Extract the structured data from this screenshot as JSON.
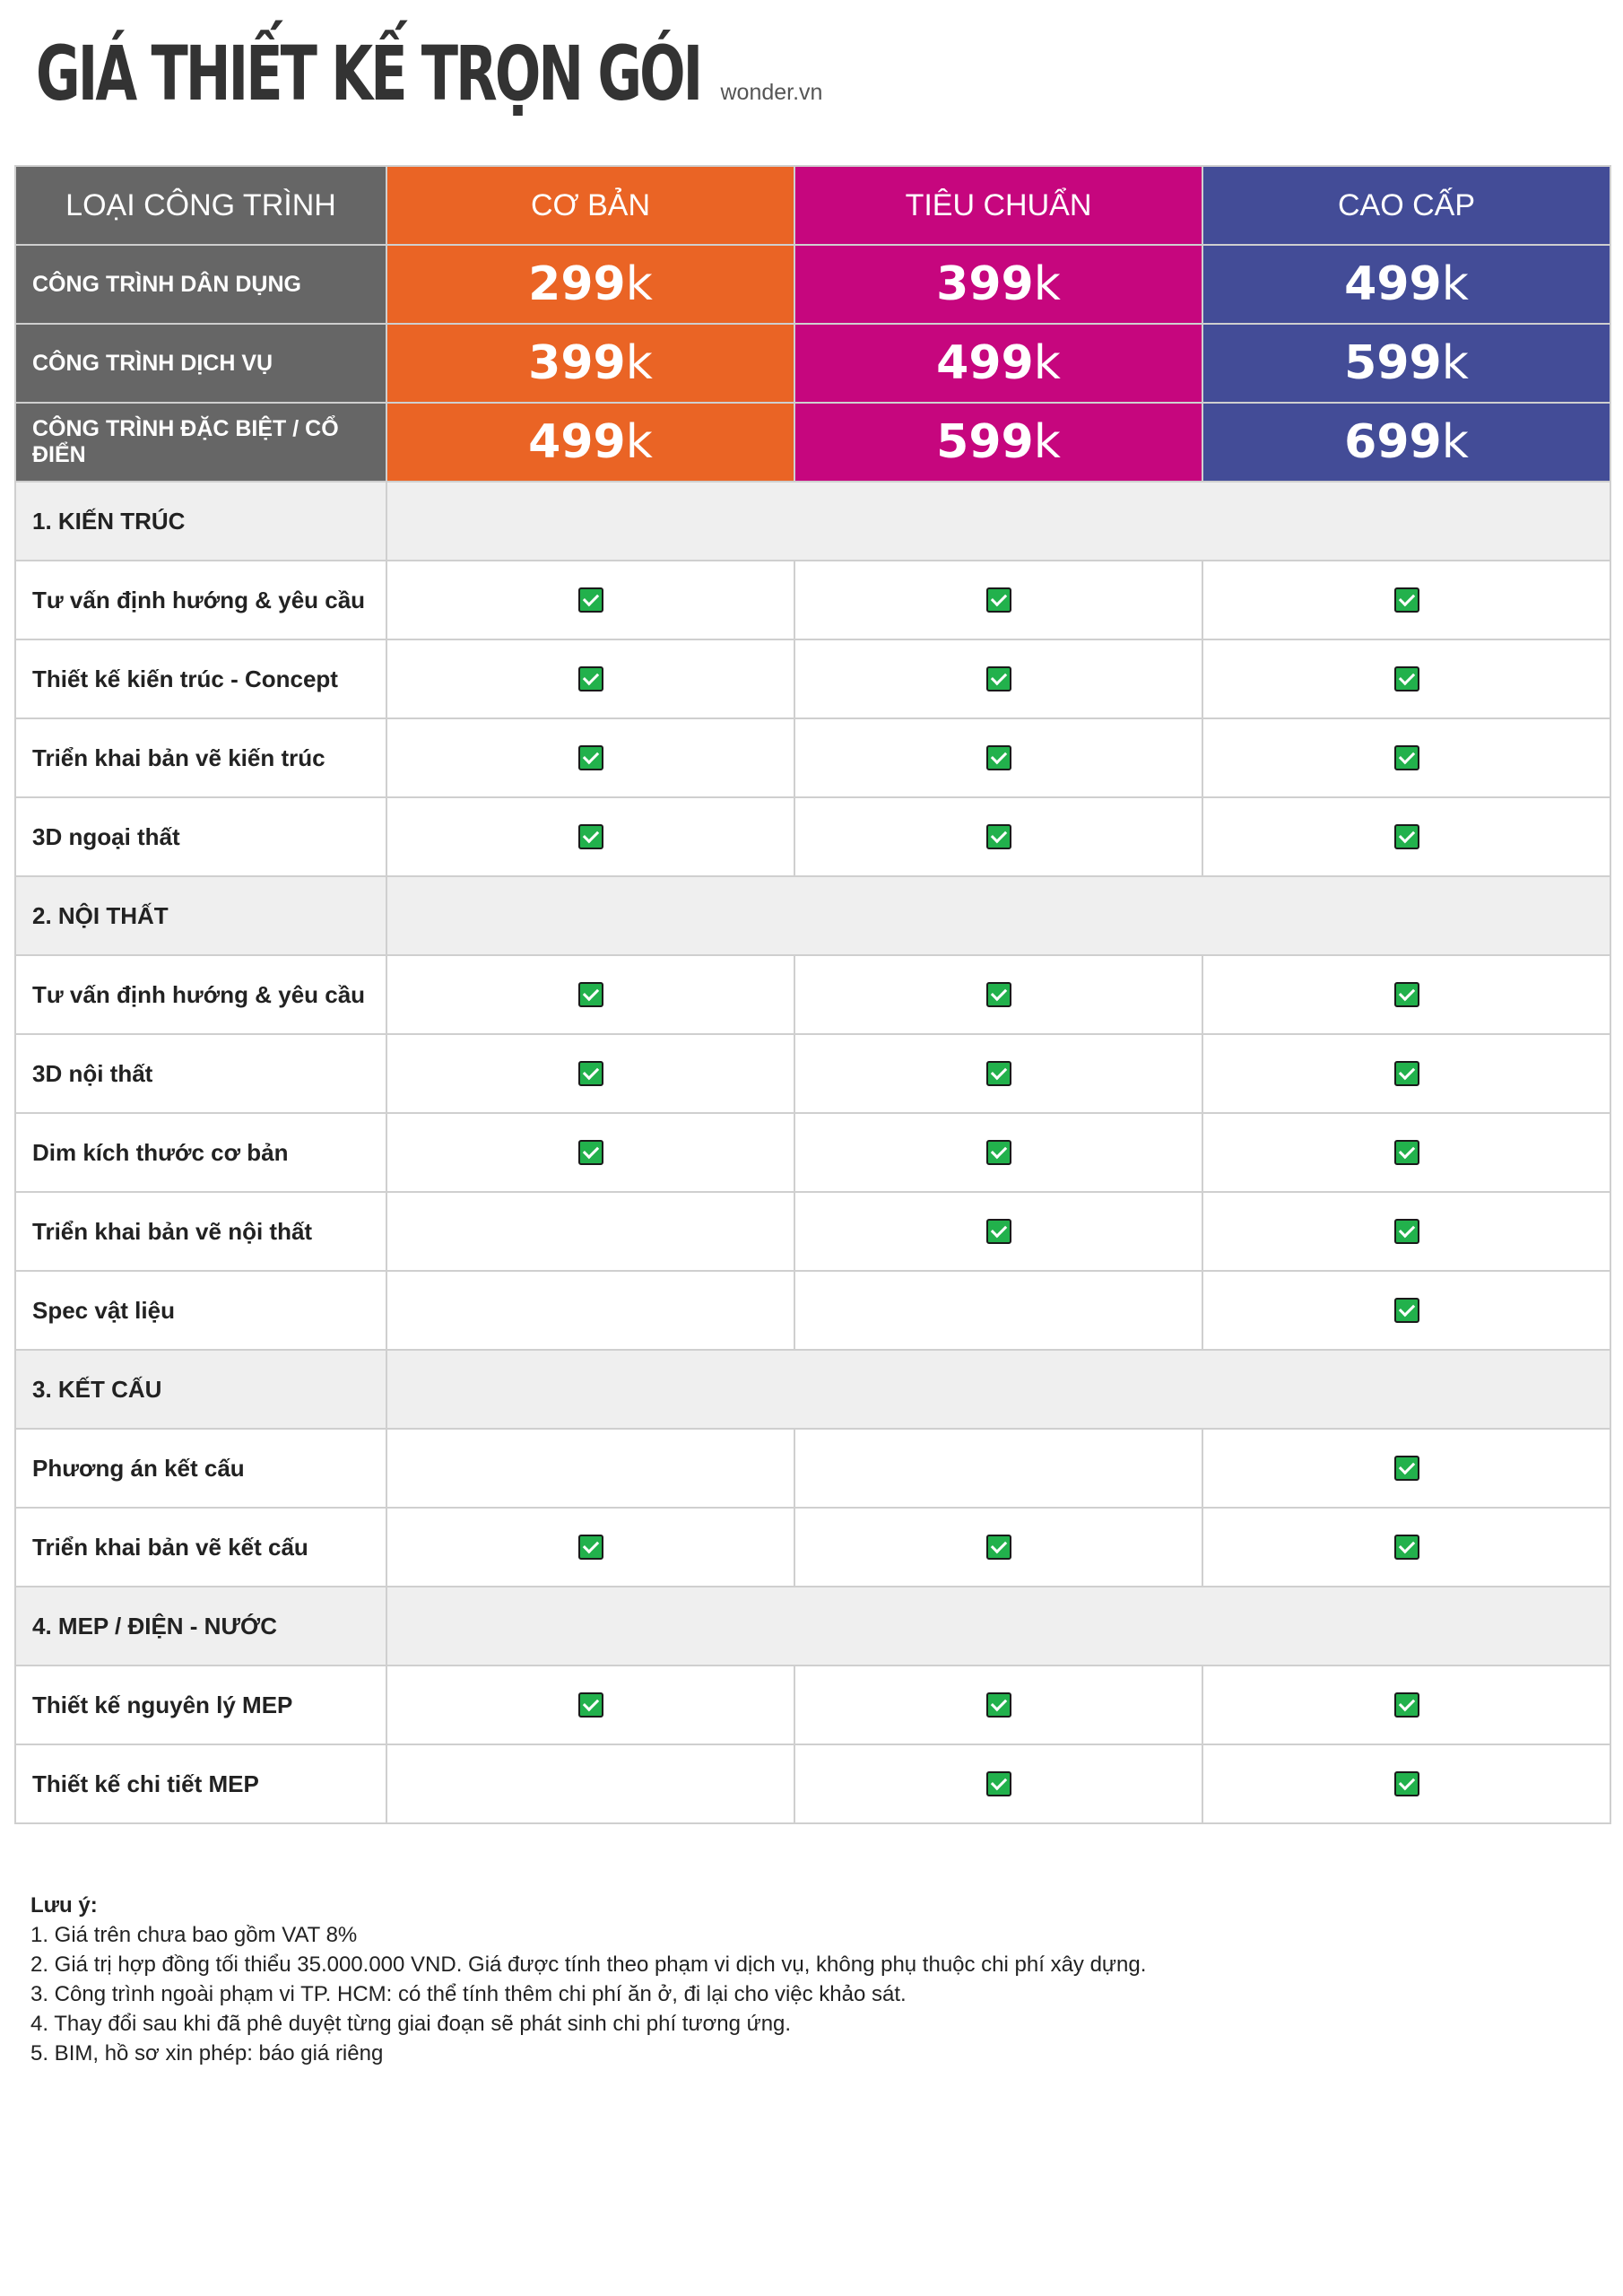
{
  "header": {
    "title": "GIÁ THIẾT KẾ TRỌN GÓI",
    "brand": "wonder.vn"
  },
  "table": {
    "corner_label": "LOẠI CÔNG TRÌNH",
    "tiers": [
      {
        "name": "CƠ BẢN",
        "color": "#ea6425"
      },
      {
        "name": "TIÊU CHUẨN",
        "color": "#c6067e"
      },
      {
        "name": "CAO CẤP",
        "color": "#434c97"
      }
    ],
    "price_rows": [
      {
        "label": "CÔNG TRÌNH DÂN DỤNG",
        "prices": [
          {
            "n": "299",
            "u": "k"
          },
          {
            "n": "399",
            "u": "k"
          },
          {
            "n": "499",
            "u": "k"
          }
        ]
      },
      {
        "label": "CÔNG TRÌNH DỊCH VỤ",
        "prices": [
          {
            "n": "399",
            "u": "k"
          },
          {
            "n": "499",
            "u": "k"
          },
          {
            "n": "599",
            "u": "k"
          }
        ]
      },
      {
        "label": "CÔNG TRÌNH ĐẶC BIỆT / CỔ ĐIỂN",
        "prices": [
          {
            "n": "499",
            "u": "k"
          },
          {
            "n": "599",
            "u": "k"
          },
          {
            "n": "699",
            "u": "k"
          }
        ]
      }
    ],
    "sections": [
      {
        "title": "1. KIẾN TRÚC",
        "items": [
          {
            "label": "Tư vấn định hướng & yêu cầu",
            "checks": [
              true,
              true,
              true
            ]
          },
          {
            "label": "Thiết kế kiến trúc - Concept",
            "checks": [
              true,
              true,
              true
            ]
          },
          {
            "label": "Triển khai bản vẽ kiến trúc",
            "checks": [
              true,
              true,
              true
            ]
          },
          {
            "label": "3D ngoại thất",
            "checks": [
              true,
              true,
              true
            ]
          }
        ]
      },
      {
        "title": "2. NỘI THẤT",
        "items": [
          {
            "label": "Tư vấn định hướng & yêu cầu",
            "checks": [
              true,
              true,
              true
            ]
          },
          {
            "label": "3D nội thất",
            "checks": [
              true,
              true,
              true
            ]
          },
          {
            "label": "Dim kích thước cơ bản",
            "checks": [
              true,
              true,
              true
            ]
          },
          {
            "label": "Triển khai bản vẽ nội thất",
            "checks": [
              false,
              true,
              true
            ]
          },
          {
            "label": "Spec vật liệu",
            "checks": [
              false,
              false,
              true
            ]
          }
        ]
      },
      {
        "title": "3. KẾT CẤU",
        "items": [
          {
            "label": "Phương án kết cấu",
            "checks": [
              false,
              false,
              true
            ]
          },
          {
            "label": "Triển khai bản vẽ kết cấu",
            "checks": [
              true,
              true,
              true
            ]
          }
        ]
      },
      {
        "title": "4. MEP / ĐIỆN - NƯỚC",
        "items": [
          {
            "label": "Thiết kế nguyên lý MEP",
            "checks": [
              true,
              true,
              true
            ]
          },
          {
            "label": "Thiết kế chi tiết MEP",
            "checks": [
              false,
              true,
              true
            ]
          }
        ]
      }
    ]
  },
  "notes": {
    "title": "Lưu ý:",
    "items": [
      "1. Giá trên chưa bao gồm VAT 8%",
      "2. Giá trị hợp đồng tối thiểu 35.000.000 VND. Giá được tính theo phạm vi dịch vụ, không phụ thuộc chi phí xây dựng.",
      "3. Công trình ngoài phạm vi TP. HCM: có thể tính thêm chi phí ăn ở, đi lại cho việc khảo sát.",
      "4. Thay đổi sau khi đã phê duyệt từng giai đoạn sẽ phát sinh chi phí tương ứng.",
      "5. BIM, hồ sơ xin phép: báo giá riêng"
    ]
  }
}
